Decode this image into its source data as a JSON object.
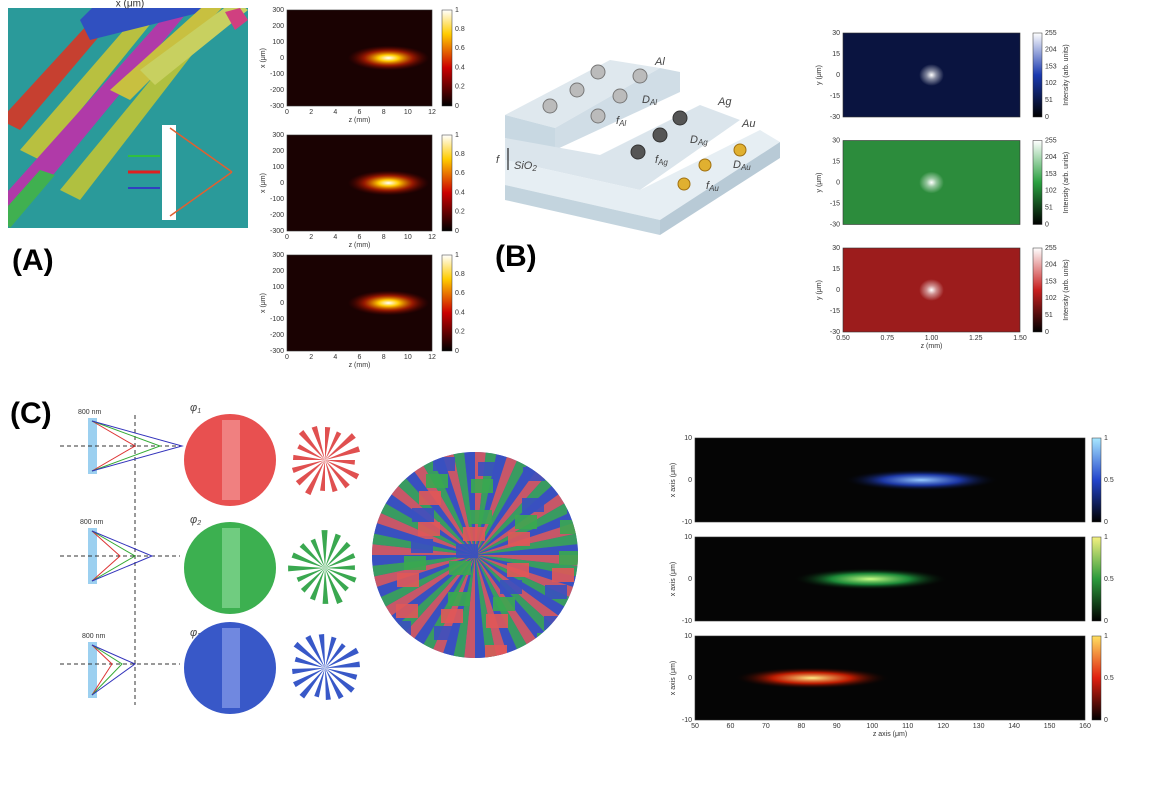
{
  "panel_a": {
    "label": "(A)",
    "image_caption": "x (μm)",
    "plots": [
      {
        "ylabel": "x (μm)",
        "xlabel": "z (mm)",
        "xticks": [
          "0",
          "2",
          "4",
          "6",
          "8",
          "10",
          "12"
        ],
        "yticks": [
          "300",
          "200",
          "100",
          "0",
          "-100",
          "-200",
          "-300"
        ],
        "colorbar_ticks": [
          "1",
          "0.8",
          "0.6",
          "0.4",
          "0.2",
          "0"
        ]
      },
      {
        "ylabel": "x (μm)",
        "xlabel": "z (mm)",
        "xticks": [
          "0",
          "2",
          "4",
          "6",
          "8",
          "10",
          "12"
        ],
        "yticks": [
          "300",
          "200",
          "100",
          "0",
          "-100",
          "-200",
          "-300"
        ],
        "colorbar_ticks": [
          "1",
          "0.8",
          "0.6",
          "0.4",
          "0.2",
          "0"
        ]
      },
      {
        "ylabel": "x (μm)",
        "xlabel": "z (mm)",
        "xticks": [
          "0",
          "2",
          "4",
          "6",
          "8",
          "10",
          "12"
        ],
        "yticks": [
          "300",
          "200",
          "100",
          "0",
          "-100",
          "-200",
          "-300"
        ],
        "colorbar_ticks": [
          "1",
          "0.8",
          "0.6",
          "0.4",
          "0.2",
          "0"
        ]
      }
    ]
  },
  "panel_b": {
    "label": "(B)",
    "schematic": {
      "metals": [
        "Al",
        "Ag",
        "Au"
      ],
      "focal_labels": [
        {
          "main": "D",
          "sub": "Al"
        },
        {
          "main": "f",
          "sub": "Al"
        },
        {
          "main": "D",
          "sub": "Ag"
        },
        {
          "main": "f",
          "sub": "Ag"
        },
        {
          "main": "D",
          "sub": "Au"
        },
        {
          "main": "f",
          "sub": "Au"
        }
      ],
      "thickness": "f",
      "substrate": {
        "main": "SiO",
        "sub": "2"
      }
    },
    "plots": [
      {
        "ylabel": "y (μm)",
        "yticks": [
          "30",
          "15",
          "0",
          "-15",
          "-30"
        ],
        "colorbar_ticks": [
          "255",
          "204",
          "153",
          "102",
          "51",
          "0"
        ],
        "colorbar_label": "Intensity (arb. units)"
      },
      {
        "ylabel": "y (μm)",
        "yticks": [
          "30",
          "15",
          "0",
          "-15",
          "-30"
        ],
        "colorbar_ticks": [
          "255",
          "204",
          "153",
          "102",
          "51",
          "0"
        ],
        "colorbar_label": "Intensity (arb. units)"
      },
      {
        "ylabel": "y (μm)",
        "xlabel": "z (mm)",
        "xticks": [
          "0.50",
          "0.75",
          "1.00",
          "1.25",
          "1.50"
        ],
        "yticks": [
          "30",
          "15",
          "0",
          "-15",
          "-30"
        ],
        "colorbar_ticks": [
          "255",
          "204",
          "153",
          "102",
          "51",
          "0"
        ],
        "colorbar_label": "Intensity (arb. units)"
      }
    ]
  },
  "panel_c": {
    "label": "(C)",
    "wavelength_labels": [
      "800 nm",
      "800 nm",
      "800 nm"
    ],
    "phase_labels": [
      {
        "main": "φ",
        "sub": "1"
      },
      {
        "main": "φ",
        "sub": "2"
      },
      {
        "main": "φ",
        "sub": "3"
      }
    ],
    "plots": [
      {
        "ylabel": "x axis (μm)",
        "yticks": [
          "10",
          "0",
          "-10"
        ],
        "colorbar_ticks": [
          "1",
          "0.5",
          "0"
        ]
      },
      {
        "ylabel": "x axis (μm)",
        "yticks": [
          "10",
          "0",
          "-10"
        ],
        "colorbar_ticks": [
          "1",
          "0.5",
          "0"
        ]
      },
      {
        "ylabel": "x axis (μm)",
        "xlabel": "z axis (μm)",
        "xticks": [
          "50",
          "60",
          "70",
          "80",
          "90",
          "100",
          "110",
          "120",
          "130",
          "140",
          "150",
          "160"
        ],
        "yticks": [
          "10",
          "0",
          "-10"
        ],
        "colorbar_ticks": [
          "1",
          "0.5",
          "0"
        ]
      }
    ]
  }
}
